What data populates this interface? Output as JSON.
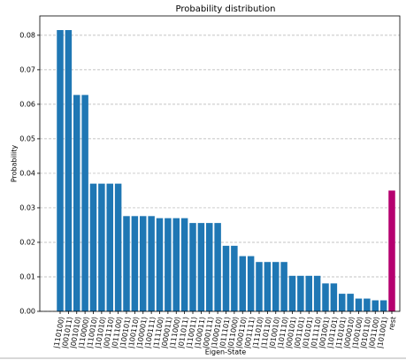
{
  "chart_data": {
    "type": "bar",
    "title": "Probability distribution",
    "x_label": "Eigen-State",
    "y_label": "Probability",
    "categories": [
      "|110100⟩",
      "|001011⟩",
      "|001010⟩",
      "|110000⟩",
      "|110010⟩",
      "|101010⟩",
      "|001110⟩",
      "|011100⟩",
      "|100101⟩",
      "|100110⟩",
      "|100001⟩",
      "|100111⟩",
      "|111100⟩",
      "|000011⟩",
      "|111000⟩",
      "|011011⟩",
      "|110011⟩",
      "|100011⟩",
      "|000111⟩",
      "|100010⟩",
      "|011101⟩",
      "|011000⟩",
      "|000110⟩",
      "|001111⟩",
      "|111010⟩",
      "|110110⟩",
      "|010010⟩",
      "|101110⟩",
      "|000101⟩",
      "|001101⟩",
      "|010101⟩",
      "|011110⟩",
      "|001001⟩",
      "|101101⟩",
      "|110101⟩",
      "|000010⟩",
      "|100100⟩",
      "|010110⟩",
      "|001100⟩",
      "|101001⟩",
      "rest"
    ],
    "values": [
      0.0815,
      0.0815,
      0.0627,
      0.0627,
      0.037,
      0.037,
      0.037,
      0.037,
      0.0276,
      0.0276,
      0.0276,
      0.0276,
      0.027,
      0.027,
      0.027,
      0.027,
      0.0256,
      0.0256,
      0.0256,
      0.0256,
      0.019,
      0.019,
      0.016,
      0.016,
      0.0143,
      0.0143,
      0.0143,
      0.0143,
      0.0103,
      0.0103,
      0.0103,
      0.0103,
      0.0081,
      0.0081,
      0.0051,
      0.0051,
      0.0037,
      0.0037,
      0.0032,
      0.0032,
      0.035
    ],
    "colors": [
      "#1f77b4",
      "#1f77b4",
      "#1f77b4",
      "#1f77b4",
      "#1f77b4",
      "#1f77b4",
      "#1f77b4",
      "#1f77b4",
      "#1f77b4",
      "#1f77b4",
      "#1f77b4",
      "#1f77b4",
      "#1f77b4",
      "#1f77b4",
      "#1f77b4",
      "#1f77b4",
      "#1f77b4",
      "#1f77b4",
      "#1f77b4",
      "#1f77b4",
      "#1f77b4",
      "#1f77b4",
      "#1f77b4",
      "#1f77b4",
      "#1f77b4",
      "#1f77b4",
      "#1f77b4",
      "#1f77b4",
      "#1f77b4",
      "#1f77b4",
      "#1f77b4",
      "#1f77b4",
      "#1f77b4",
      "#1f77b4",
      "#1f77b4",
      "#1f77b4",
      "#1f77b4",
      "#1f77b4",
      "#1f77b4",
      "#1f77b4",
      "#b5006f"
    ],
    "ylim": [
      0,
      0.0856
    ],
    "yticks": [
      {
        "value": 0,
        "label": "0.00"
      },
      {
        "value": 0.01,
        "label": "0.01"
      },
      {
        "value": 0.02,
        "label": "0.02"
      },
      {
        "value": 0.03,
        "label": "0.03"
      },
      {
        "value": 0.04,
        "label": "0.04"
      },
      {
        "value": 0.05,
        "label": "0.05"
      },
      {
        "value": 0.06,
        "label": "0.06"
      },
      {
        "value": 0.07,
        "label": "0.07"
      },
      {
        "value": 0.08,
        "label": "0.08"
      }
    ],
    "grid": true
  }
}
